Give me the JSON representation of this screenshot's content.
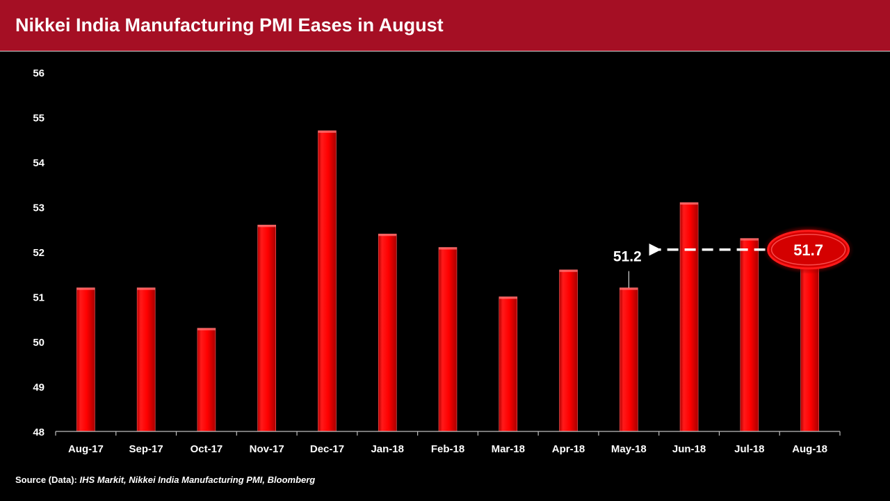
{
  "header": {
    "title": "Nikkei India Manufacturing PMI Eases in August"
  },
  "chart_data": {
    "type": "bar",
    "title": "Nikkei India Manufacturing PMI Eases in August",
    "categories": [
      "Aug-17",
      "Sep-17",
      "Oct-17",
      "Nov-17",
      "Dec-17",
      "Jan-18",
      "Feb-18",
      "Mar-18",
      "Apr-18",
      "May-18",
      "Jun-18",
      "Jul-18",
      "Aug-18"
    ],
    "values": [
      51.2,
      51.2,
      50.3,
      52.6,
      54.7,
      52.4,
      52.1,
      51.0,
      51.6,
      51.2,
      53.1,
      52.3,
      51.7
    ],
    "ylim": [
      48,
      56
    ],
    "yticks": [
      "48",
      "49",
      "50",
      "51",
      "52",
      "53",
      "54",
      "55",
      "56"
    ],
    "xlabel": "",
    "ylabel": "",
    "grid": false,
    "annotations": [
      {
        "category": "May-18",
        "label": "51.2"
      },
      {
        "category": "Aug-18",
        "label": "51.7",
        "highlight": true
      }
    ],
    "colors": {
      "bar": "#ff0000",
      "bar_edge": "#ff6666",
      "axis": "#bfbfbf",
      "text": "#ffffff",
      "highlight_ring": "#ff1a1a"
    }
  },
  "source": {
    "label": "Source (Data): ",
    "text": "IHS Markit, Nikkei India Manufacturing PMI, Bloomberg"
  }
}
